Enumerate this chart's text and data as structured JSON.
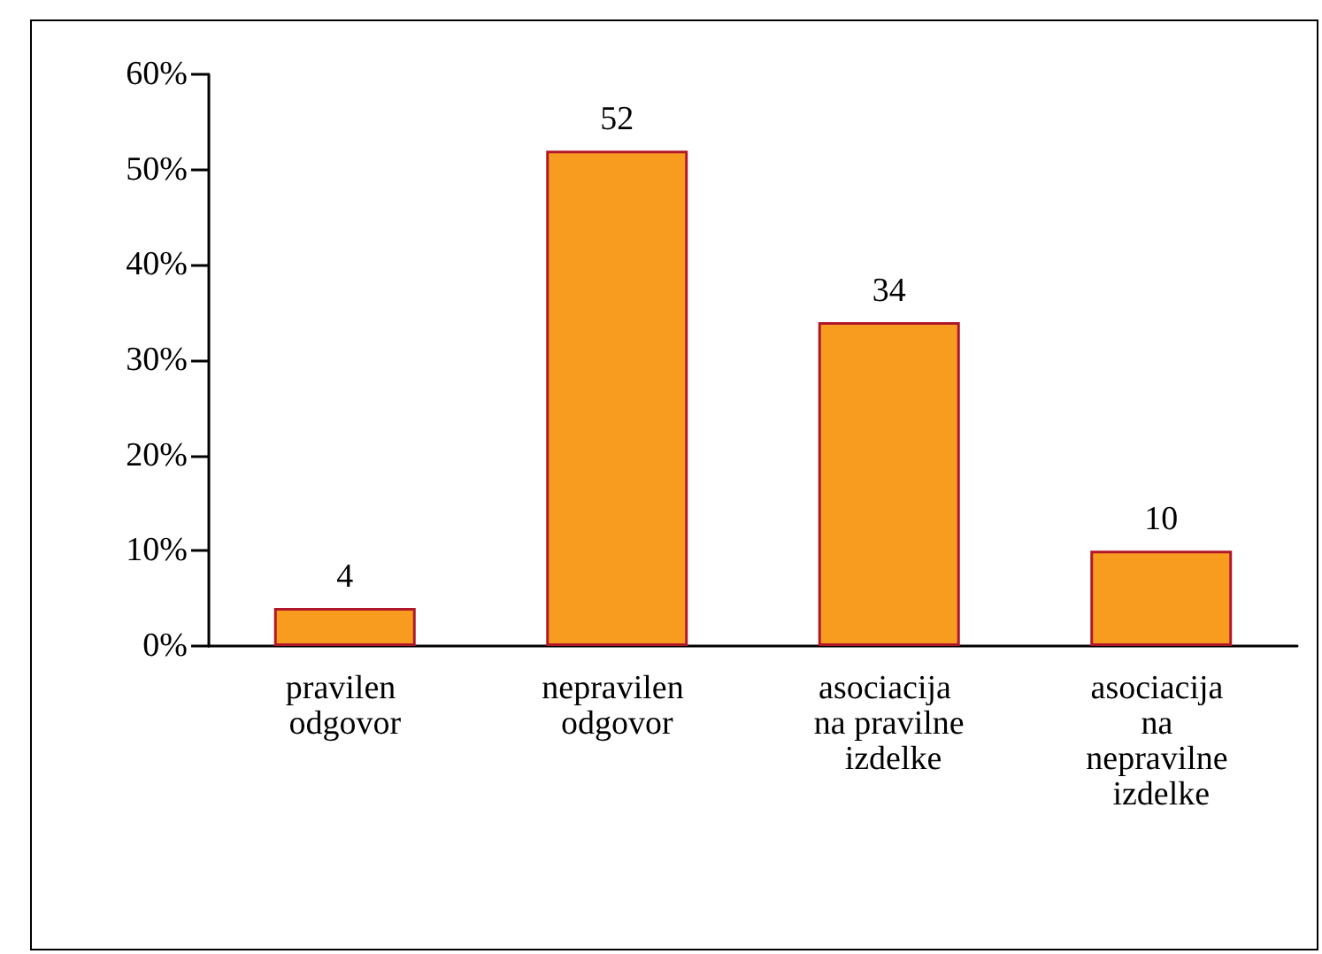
{
  "chart_data": {
    "type": "bar",
    "categories": [
      "pravilen odgovor",
      "nepravilen odgovor",
      "asociacija na pravilne izdelke",
      "asociacija na nepravilne izdelke"
    ],
    "values": [
      4,
      52,
      34,
      10
    ],
    "color": "#f89c20",
    "data_labels": true,
    "ylim": [
      0,
      60
    ],
    "yticks": [
      {
        "value": 0,
        "label": "0%"
      },
      {
        "value": 10,
        "label": "10%"
      },
      {
        "value": 20,
        "label": "20%"
      },
      {
        "value": 30,
        "label": "30%"
      },
      {
        "value": 40,
        "label": "40%"
      },
      {
        "value": 50,
        "label": "50%"
      },
      {
        "value": 60,
        "label": "60%"
      }
    ],
    "grid": false
  }
}
